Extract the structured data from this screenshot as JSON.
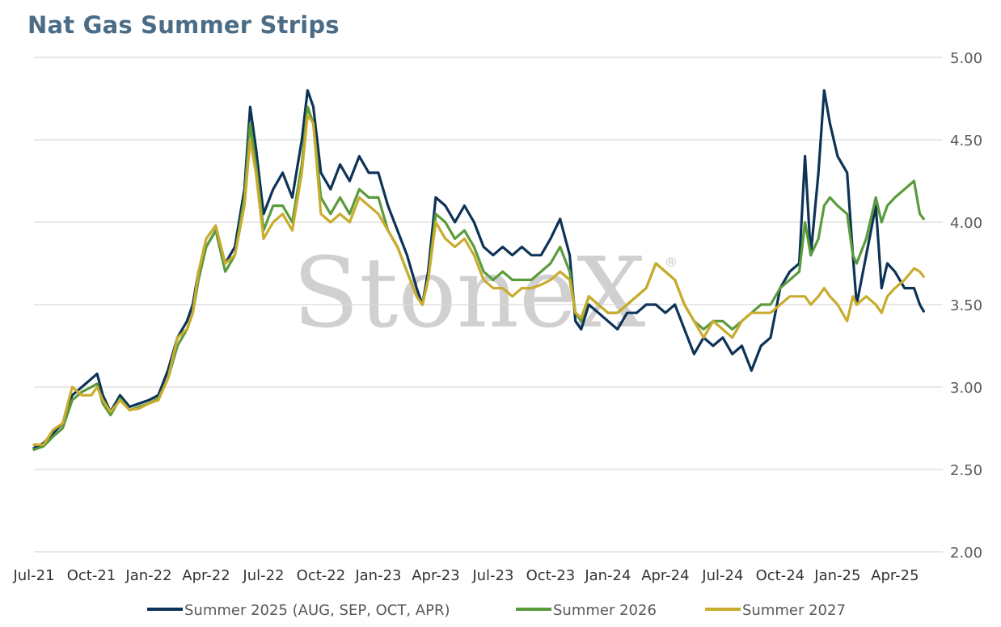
{
  "chart_data": {
    "type": "line",
    "title": "Nat Gas Summer Strips",
    "watermark": "StoneX",
    "watermark_mark": "®",
    "xlabel": "",
    "ylabel": "",
    "ylim": [
      2.0,
      5.0
    ],
    "y_ticks": [
      "2.00",
      "2.50",
      "3.00",
      "3.50",
      "4.00",
      "4.50",
      "5.00"
    ],
    "x_ticks": [
      "Jul-21",
      "Oct-21",
      "Jan-22",
      "Apr-22",
      "Jul-22",
      "Oct-22",
      "Jan-23",
      "Apr-23",
      "Jul-23",
      "Oct-23",
      "Jan-24",
      "Apr-24",
      "Jul-24",
      "Oct-24",
      "Jan-25",
      "Apr-25"
    ],
    "x_month_span": [
      0,
      47.5
    ],
    "grid": "horizontal",
    "legend_position": "bottom",
    "series": [
      {
        "name": "Summer 2025 (AUG, SEP, OCT, APR)",
        "color": "#0d3357",
        "points": [
          [
            0,
            2.63
          ],
          [
            0.5,
            2.66
          ],
          [
            1,
            2.72
          ],
          [
            1.5,
            2.78
          ],
          [
            2,
            2.95
          ],
          [
            2.5,
            3.0
          ],
          [
            3,
            3.05
          ],
          [
            3.3,
            3.08
          ],
          [
            3.6,
            2.95
          ],
          [
            4,
            2.85
          ],
          [
            4.5,
            2.95
          ],
          [
            5,
            2.88
          ],
          [
            5.5,
            2.9
          ],
          [
            6,
            2.92
          ],
          [
            6.5,
            2.95
          ],
          [
            7,
            3.1
          ],
          [
            7.5,
            3.3
          ],
          [
            8,
            3.4
          ],
          [
            8.3,
            3.5
          ],
          [
            8.6,
            3.7
          ],
          [
            9,
            3.85
          ],
          [
            9.5,
            3.95
          ],
          [
            10,
            3.75
          ],
          [
            10.5,
            3.85
          ],
          [
            11,
            4.2
          ],
          [
            11.3,
            4.7
          ],
          [
            11.6,
            4.45
          ],
          [
            12,
            4.05
          ],
          [
            12.5,
            4.2
          ],
          [
            13,
            4.3
          ],
          [
            13.5,
            4.15
          ],
          [
            14,
            4.5
          ],
          [
            14.3,
            4.8
          ],
          [
            14.6,
            4.7
          ],
          [
            15,
            4.3
          ],
          [
            15.5,
            4.2
          ],
          [
            16,
            4.35
          ],
          [
            16.5,
            4.25
          ],
          [
            17,
            4.4
          ],
          [
            17.5,
            4.3
          ],
          [
            18,
            4.3
          ],
          [
            18.5,
            4.1
          ],
          [
            19,
            3.95
          ],
          [
            19.5,
            3.8
          ],
          [
            20,
            3.6
          ],
          [
            20.3,
            3.5
          ],
          [
            20.6,
            3.7
          ],
          [
            21,
            4.15
          ],
          [
            21.5,
            4.1
          ],
          [
            22,
            4.0
          ],
          [
            22.5,
            4.1
          ],
          [
            23,
            4.0
          ],
          [
            23.5,
            3.85
          ],
          [
            24,
            3.8
          ],
          [
            24.5,
            3.85
          ],
          [
            25,
            3.8
          ],
          [
            25.5,
            3.85
          ],
          [
            26,
            3.8
          ],
          [
            26.5,
            3.8
          ],
          [
            27,
            3.9
          ],
          [
            27.5,
            4.02
          ],
          [
            28,
            3.8
          ],
          [
            28.3,
            3.4
          ],
          [
            28.6,
            3.35
          ],
          [
            29,
            3.5
          ],
          [
            29.5,
            3.45
          ],
          [
            30,
            3.4
          ],
          [
            30.5,
            3.35
          ],
          [
            31,
            3.45
          ],
          [
            31.5,
            3.45
          ],
          [
            32,
            3.5
          ],
          [
            32.5,
            3.5
          ],
          [
            33,
            3.45
          ],
          [
            33.5,
            3.5
          ],
          [
            34,
            3.35
          ],
          [
            34.5,
            3.2
          ],
          [
            35,
            3.3
          ],
          [
            35.5,
            3.25
          ],
          [
            36,
            3.3
          ],
          [
            36.5,
            3.2
          ],
          [
            37,
            3.25
          ],
          [
            37.5,
            3.1
          ],
          [
            38,
            3.25
          ],
          [
            38.5,
            3.3
          ],
          [
            39,
            3.6
          ],
          [
            39.5,
            3.7
          ],
          [
            40,
            3.75
          ],
          [
            40.3,
            4.4
          ],
          [
            40.6,
            3.8
          ],
          [
            41,
            4.3
          ],
          [
            41.3,
            4.8
          ],
          [
            41.6,
            4.6
          ],
          [
            42,
            4.4
          ],
          [
            42.5,
            4.3
          ],
          [
            42.8,
            3.8
          ],
          [
            43,
            3.5
          ],
          [
            43.5,
            3.8
          ],
          [
            44,
            4.1
          ],
          [
            44.3,
            3.6
          ],
          [
            44.6,
            3.75
          ],
          [
            45,
            3.7
          ],
          [
            45.5,
            3.6
          ],
          [
            46,
            3.6
          ],
          [
            46.3,
            3.5
          ],
          [
            46.5,
            3.46
          ]
        ]
      },
      {
        "name": "Summer 2026",
        "color": "#5a9b3c",
        "points": [
          [
            0,
            2.62
          ],
          [
            0.5,
            2.64
          ],
          [
            1,
            2.7
          ],
          [
            1.5,
            2.75
          ],
          [
            2,
            2.92
          ],
          [
            2.5,
            2.97
          ],
          [
            3,
            3.0
          ],
          [
            3.3,
            3.02
          ],
          [
            3.6,
            2.9
          ],
          [
            4,
            2.83
          ],
          [
            4.5,
            2.93
          ],
          [
            5,
            2.86
          ],
          [
            5.5,
            2.88
          ],
          [
            6,
            2.9
          ],
          [
            6.5,
            2.93
          ],
          [
            7,
            3.05
          ],
          [
            7.5,
            3.25
          ],
          [
            8,
            3.35
          ],
          [
            8.3,
            3.45
          ],
          [
            8.6,
            3.65
          ],
          [
            9,
            3.85
          ],
          [
            9.5,
            3.95
          ],
          [
            10,
            3.7
          ],
          [
            10.5,
            3.8
          ],
          [
            11,
            4.15
          ],
          [
            11.3,
            4.6
          ],
          [
            11.6,
            4.35
          ],
          [
            12,
            3.95
          ],
          [
            12.5,
            4.1
          ],
          [
            13,
            4.1
          ],
          [
            13.5,
            4.0
          ],
          [
            14,
            4.35
          ],
          [
            14.3,
            4.7
          ],
          [
            14.6,
            4.6
          ],
          [
            15,
            4.15
          ],
          [
            15.5,
            4.05
          ],
          [
            16,
            4.15
          ],
          [
            16.5,
            4.05
          ],
          [
            17,
            4.2
          ],
          [
            17.5,
            4.15
          ],
          [
            18,
            4.15
          ],
          [
            18.5,
            3.95
          ],
          [
            19,
            3.85
          ],
          [
            19.5,
            3.7
          ],
          [
            20,
            3.55
          ],
          [
            20.3,
            3.5
          ],
          [
            20.6,
            3.65
          ],
          [
            21,
            4.05
          ],
          [
            21.5,
            4.0
          ],
          [
            22,
            3.9
          ],
          [
            22.5,
            3.95
          ],
          [
            23,
            3.85
          ],
          [
            23.5,
            3.7
          ],
          [
            24,
            3.65
          ],
          [
            24.5,
            3.7
          ],
          [
            25,
            3.65
          ],
          [
            25.5,
            3.65
          ],
          [
            26,
            3.65
          ],
          [
            26.5,
            3.7
          ],
          [
            27,
            3.75
          ],
          [
            27.5,
            3.85
          ],
          [
            28,
            3.7
          ],
          [
            28.3,
            3.45
          ],
          [
            28.6,
            3.4
          ],
          [
            29,
            3.55
          ],
          [
            29.5,
            3.5
          ],
          [
            30,
            3.45
          ],
          [
            30.5,
            3.45
          ],
          [
            31,
            3.5
          ],
          [
            31.5,
            3.55
          ],
          [
            32,
            3.6
          ],
          [
            32.5,
            3.75
          ],
          [
            33,
            3.7
          ],
          [
            33.5,
            3.65
          ],
          [
            34,
            3.5
          ],
          [
            34.5,
            3.4
          ],
          [
            35,
            3.35
          ],
          [
            35.5,
            3.4
          ],
          [
            36,
            3.4
          ],
          [
            36.5,
            3.35
          ],
          [
            37,
            3.4
          ],
          [
            37.5,
            3.45
          ],
          [
            38,
            3.5
          ],
          [
            38.5,
            3.5
          ],
          [
            39,
            3.6
          ],
          [
            39.5,
            3.65
          ],
          [
            40,
            3.7
          ],
          [
            40.3,
            4.0
          ],
          [
            40.6,
            3.8
          ],
          [
            41,
            3.9
          ],
          [
            41.3,
            4.1
          ],
          [
            41.6,
            4.15
          ],
          [
            42,
            4.1
          ],
          [
            42.5,
            4.05
          ],
          [
            42.8,
            3.8
          ],
          [
            43,
            3.75
          ],
          [
            43.5,
            3.9
          ],
          [
            44,
            4.15
          ],
          [
            44.3,
            4.0
          ],
          [
            44.6,
            4.1
          ],
          [
            45,
            4.15
          ],
          [
            45.5,
            4.2
          ],
          [
            46,
            4.25
          ],
          [
            46.3,
            4.05
          ],
          [
            46.5,
            4.02
          ]
        ]
      },
      {
        "name": "Summer 2027",
        "color": "#c9ac2e",
        "points": [
          [
            0,
            2.65
          ],
          [
            0.5,
            2.65
          ],
          [
            1,
            2.74
          ],
          [
            1.5,
            2.78
          ],
          [
            2,
            3.0
          ],
          [
            2.5,
            2.95
          ],
          [
            3,
            2.95
          ],
          [
            3.3,
            3.0
          ],
          [
            3.6,
            2.92
          ],
          [
            4,
            2.85
          ],
          [
            4.5,
            2.92
          ],
          [
            5,
            2.86
          ],
          [
            5.5,
            2.87
          ],
          [
            6,
            2.9
          ],
          [
            6.5,
            2.92
          ],
          [
            7,
            3.05
          ],
          [
            7.5,
            3.3
          ],
          [
            8,
            3.35
          ],
          [
            8.3,
            3.45
          ],
          [
            8.6,
            3.7
          ],
          [
            9,
            3.9
          ],
          [
            9.5,
            3.98
          ],
          [
            10,
            3.75
          ],
          [
            10.5,
            3.8
          ],
          [
            11,
            4.1
          ],
          [
            11.3,
            4.5
          ],
          [
            11.6,
            4.3
          ],
          [
            12,
            3.9
          ],
          [
            12.5,
            4.0
          ],
          [
            13,
            4.05
          ],
          [
            13.5,
            3.95
          ],
          [
            14,
            4.3
          ],
          [
            14.3,
            4.65
          ],
          [
            14.6,
            4.6
          ],
          [
            15,
            4.05
          ],
          [
            15.5,
            4.0
          ],
          [
            16,
            4.05
          ],
          [
            16.5,
            4.0
          ],
          [
            17,
            4.15
          ],
          [
            17.5,
            4.1
          ],
          [
            18,
            4.05
          ],
          [
            18.5,
            3.95
          ],
          [
            19,
            3.85
          ],
          [
            19.5,
            3.7
          ],
          [
            20,
            3.55
          ],
          [
            20.3,
            3.5
          ],
          [
            20.6,
            3.65
          ],
          [
            21,
            4.0
          ],
          [
            21.5,
            3.9
          ],
          [
            22,
            3.85
          ],
          [
            22.5,
            3.9
          ],
          [
            23,
            3.8
          ],
          [
            23.5,
            3.65
          ],
          [
            24,
            3.6
          ],
          [
            24.5,
            3.6
          ],
          [
            25,
            3.55
          ],
          [
            25.5,
            3.6
          ],
          [
            26,
            3.6
          ],
          [
            26.5,
            3.62
          ],
          [
            27,
            3.65
          ],
          [
            27.5,
            3.7
          ],
          [
            28,
            3.65
          ],
          [
            28.3,
            3.45
          ],
          [
            28.6,
            3.42
          ],
          [
            29,
            3.55
          ],
          [
            29.5,
            3.5
          ],
          [
            30,
            3.45
          ],
          [
            30.5,
            3.45
          ],
          [
            31,
            3.5
          ],
          [
            31.5,
            3.55
          ],
          [
            32,
            3.6
          ],
          [
            32.5,
            3.75
          ],
          [
            33,
            3.7
          ],
          [
            33.5,
            3.65
          ],
          [
            34,
            3.5
          ],
          [
            34.5,
            3.4
          ],
          [
            35,
            3.3
          ],
          [
            35.5,
            3.4
          ],
          [
            36,
            3.35
          ],
          [
            36.5,
            3.3
          ],
          [
            37,
            3.4
          ],
          [
            37.5,
            3.45
          ],
          [
            38,
            3.45
          ],
          [
            38.5,
            3.45
          ],
          [
            39,
            3.5
          ],
          [
            39.5,
            3.55
          ],
          [
            40,
            3.55
          ],
          [
            40.3,
            3.55
          ],
          [
            40.6,
            3.5
          ],
          [
            41,
            3.55
          ],
          [
            41.3,
            3.6
          ],
          [
            41.6,
            3.55
          ],
          [
            42,
            3.5
          ],
          [
            42.5,
            3.4
          ],
          [
            42.8,
            3.55
          ],
          [
            43,
            3.5
          ],
          [
            43.5,
            3.55
          ],
          [
            44,
            3.5
          ],
          [
            44.3,
            3.45
          ],
          [
            44.6,
            3.55
          ],
          [
            45,
            3.6
          ],
          [
            45.5,
            3.65
          ],
          [
            46,
            3.72
          ],
          [
            46.3,
            3.7
          ],
          [
            46.5,
            3.67
          ]
        ]
      }
    ]
  }
}
